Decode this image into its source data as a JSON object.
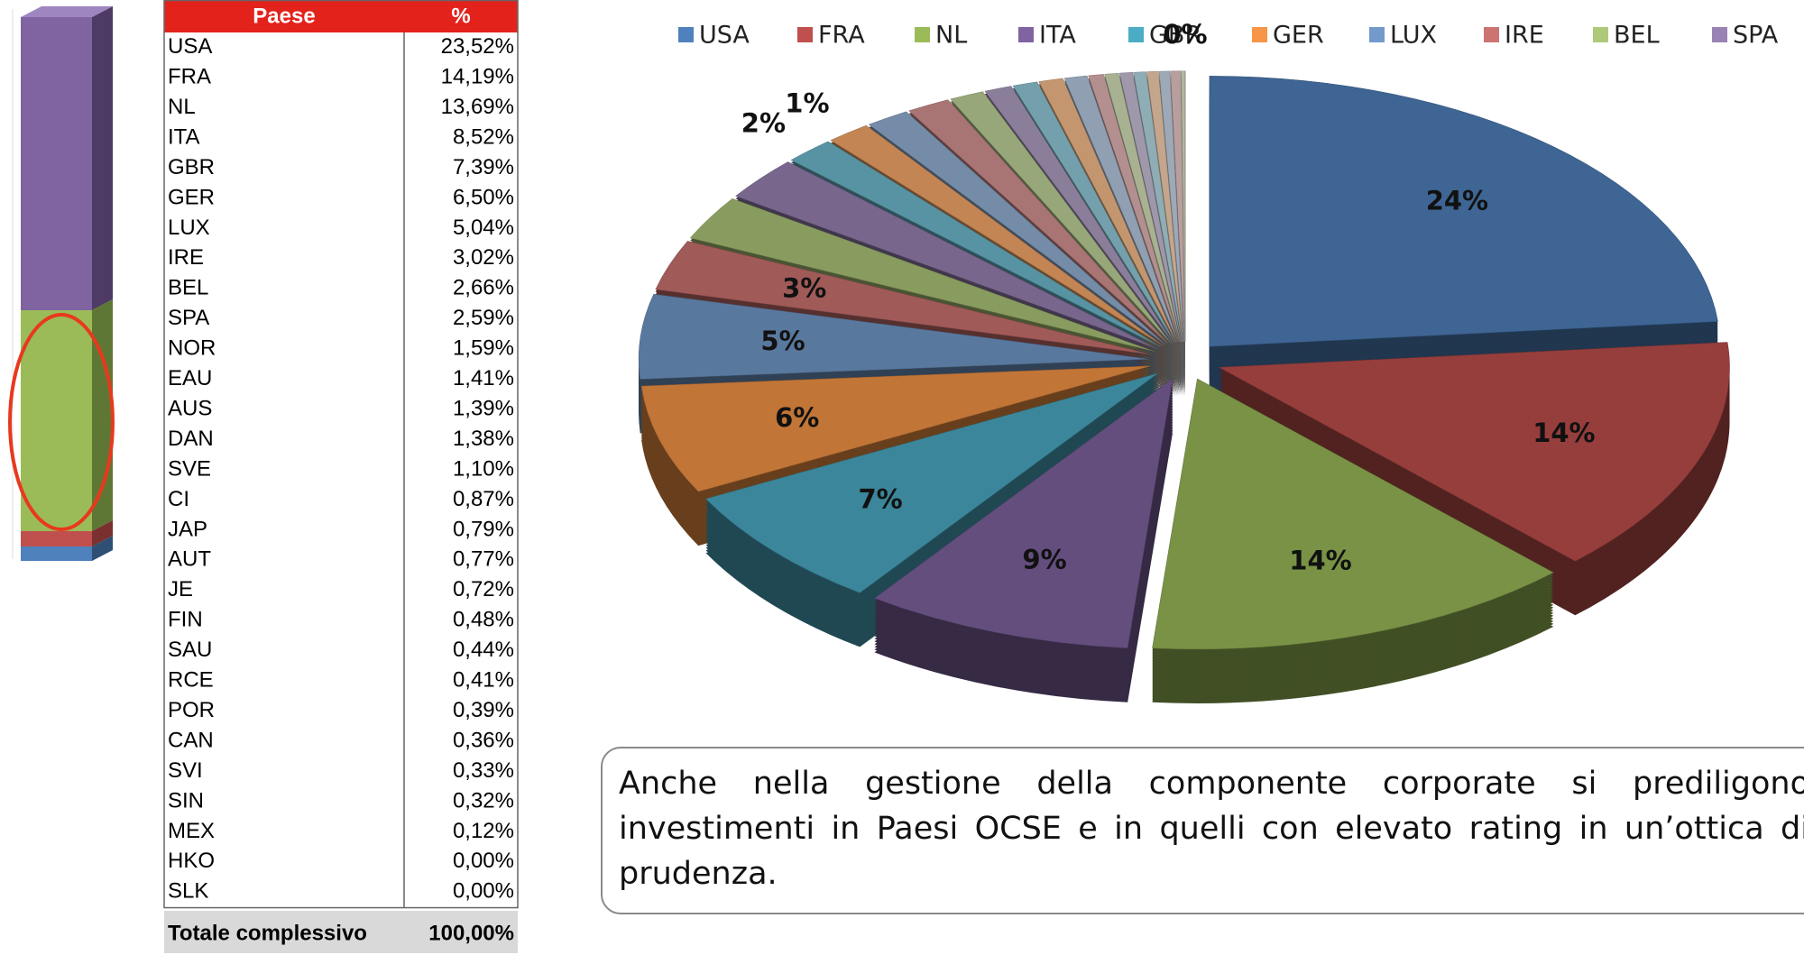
{
  "table": {
    "header": [
      "Paese",
      "%"
    ],
    "rows": [
      [
        "USA",
        "23,52%"
      ],
      [
        "FRA",
        "14,19%"
      ],
      [
        "NL",
        "13,69%"
      ],
      [
        "ITA",
        "8,52%"
      ],
      [
        "GBR",
        "7,39%"
      ],
      [
        "GER",
        "6,50%"
      ],
      [
        "LUX",
        "5,04%"
      ],
      [
        "IRE",
        "3,02%"
      ],
      [
        "BEL",
        "2,66%"
      ],
      [
        "SPA",
        "2,59%"
      ],
      [
        "NOR",
        "1,59%"
      ],
      [
        "EAU",
        "1,41%"
      ],
      [
        "AUS",
        "1,39%"
      ],
      [
        "DAN",
        "1,38%"
      ],
      [
        "SVE",
        "1,10%"
      ],
      [
        "CI",
        "0,87%"
      ],
      [
        "JAP",
        "0,79%"
      ],
      [
        "AUT",
        "0,77%"
      ],
      [
        "JE",
        "0,72%"
      ],
      [
        "FIN",
        "0,48%"
      ],
      [
        "SAU",
        "0,44%"
      ],
      [
        "RCE",
        "0,41%"
      ],
      [
        "POR",
        "0,39%"
      ],
      [
        "CAN",
        "0,36%"
      ],
      [
        "SVI",
        "0,33%"
      ],
      [
        "SIN",
        "0,32%"
      ],
      [
        "MEX",
        "0,12%"
      ],
      [
        "HKO",
        "0,00%"
      ],
      [
        "SLK",
        "0,00%"
      ]
    ],
    "total": [
      "Totale complessivo",
      "100,00%"
    ]
  },
  "chart_data": {
    "type": "pie",
    "categories": [
      "USA",
      "FRA",
      "NL",
      "ITA",
      "GBR",
      "GER",
      "LUX",
      "IRE",
      "BEL",
      "SPA",
      "NOR",
      "EAU",
      "AUS",
      "DAN",
      "SVE",
      "CI",
      "JAP",
      "AUT",
      "JE",
      "FIN",
      "SAU",
      "RCE",
      "POR",
      "CAN",
      "SVI",
      "SIN",
      "MEX",
      "HKO",
      "SLK"
    ],
    "values": [
      23.52,
      14.19,
      13.69,
      8.52,
      7.39,
      6.5,
      5.04,
      3.02,
      2.66,
      2.59,
      1.59,
      1.41,
      1.39,
      1.38,
      1.1,
      0.87,
      0.79,
      0.77,
      0.72,
      0.48,
      0.44,
      0.41,
      0.39,
      0.36,
      0.33,
      0.32,
      0.12,
      0.0,
      0.0
    ],
    "value_labels": [
      "24%",
      "14%",
      "14%",
      "9%",
      "7%",
      "6%",
      "5%",
      "3%",
      null,
      null,
      "2%",
      "1%",
      null,
      null,
      null,
      null,
      null,
      null,
      null,
      null,
      null,
      null,
      null,
      null,
      null,
      null,
      null,
      null,
      "0%"
    ],
    "legend": [
      "USA",
      "FRA",
      "NL",
      "ITA",
      "GBR",
      "GER",
      "LUX",
      "IRE",
      "BEL",
      "SPA"
    ],
    "colors": [
      "#4f81bd",
      "#c0504d",
      "#9bbb59",
      "#8064a2",
      "#4bacc6",
      "#f79646"
    ]
  },
  "note": "Anche nella gestione della componente corporate si prediligono investimenti in Paesi OCSE e in quelli con elevato rating in un’ottica di prudenza."
}
